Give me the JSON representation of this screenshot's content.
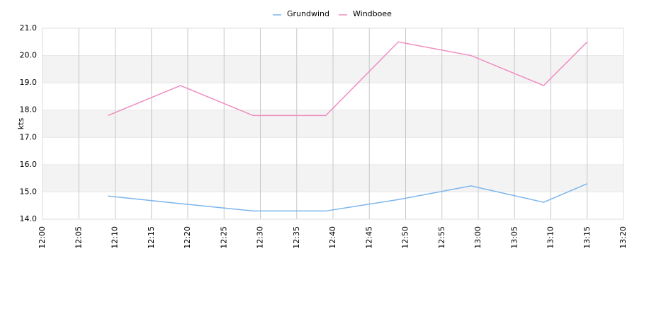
{
  "chart_data": {
    "type": "line",
    "y_label": "kts",
    "x": [
      "12:09",
      "12:19",
      "12:29",
      "12:39",
      "12:49",
      "12:59",
      "13:09",
      "13:15"
    ],
    "series": [
      {
        "name": "Grundwind",
        "color": "#7cb5ec",
        "values": [
          14.85,
          14.57,
          14.3,
          14.3,
          14.72,
          15.22,
          14.62,
          15.3
        ]
      },
      {
        "name": "Windboee",
        "color": "#f08cc0",
        "values": [
          17.8,
          18.9,
          17.8,
          17.8,
          20.5,
          20.0,
          18.9,
          20.5
        ]
      }
    ],
    "xlim": [
      "12:00",
      "13:20"
    ],
    "xticks": [
      "12:00",
      "12:05",
      "12:10",
      "12:15",
      "12:20",
      "12:25",
      "12:30",
      "12:35",
      "12:40",
      "12:45",
      "12:50",
      "12:55",
      "13:00",
      "13:05",
      "13:10",
      "13:15",
      "13:20"
    ],
    "ylim": [
      14,
      21
    ],
    "yticks": [
      {
        "value": 14,
        "label": "14.0"
      },
      {
        "value": 15,
        "label": "15.0"
      },
      {
        "value": 16,
        "label": "16.0"
      },
      {
        "value": 17,
        "label": "17.0"
      },
      {
        "value": 18,
        "label": "18.0"
      },
      {
        "value": 19,
        "label": "19.0"
      },
      {
        "value": 20,
        "label": "20.0"
      },
      {
        "value": 21,
        "label": "21.0"
      }
    ],
    "grid": true,
    "legend": "top"
  }
}
